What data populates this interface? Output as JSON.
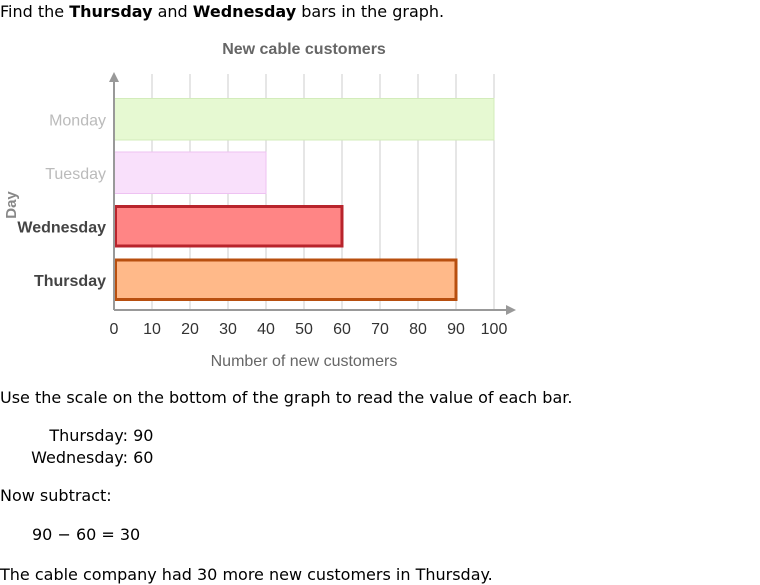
{
  "intro": {
    "prefix": "Find the ",
    "bold1": "Thursday",
    "middle": " and ",
    "bold2": "Wednesday",
    "suffix": " bars in the graph."
  },
  "chart_data": {
    "type": "bar",
    "orientation": "horizontal",
    "title": "New cable customers",
    "xlabel": "Number of new customers",
    "ylabel": "Day",
    "xlim": [
      0,
      100
    ],
    "xticks": [
      0,
      10,
      20,
      30,
      40,
      50,
      60,
      70,
      80,
      90,
      100
    ],
    "grid": true,
    "categories": [
      "Monday",
      "Tuesday",
      "Wednesday",
      "Thursday"
    ],
    "values": [
      100,
      40,
      60,
      90
    ],
    "highlighted": [
      false,
      false,
      true,
      true
    ],
    "colors": {
      "fills": [
        "#e6f9d2",
        "#f9e0fb",
        "#ff8585",
        "#ffb989"
      ],
      "strokes": [
        "#d3ecbb",
        "#eec2f2",
        "#b8242c",
        "#b84f0f"
      ],
      "label_normal": "#bbbbbb",
      "label_highlight": "#444444",
      "title": "#666666",
      "axis": "#999999",
      "grid": "#cccccc"
    }
  },
  "explanation": {
    "scale_text": "Use the scale on the bottom of the graph to read the value of each bar.",
    "values": [
      {
        "label": "Thursday:",
        "value": "90"
      },
      {
        "label": "Wednesday:",
        "value": "60"
      }
    ],
    "subtract_text": "Now subtract:",
    "equation": "90 − 60 = 30",
    "conclusion": "The cable company had 30 more new customers in Thursday."
  }
}
